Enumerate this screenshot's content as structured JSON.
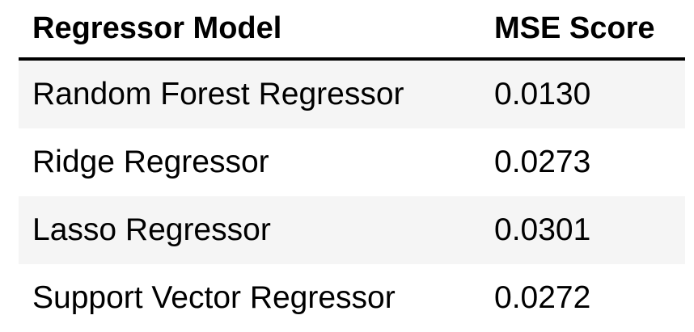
{
  "table": {
    "headers": {
      "model": "Regressor Model",
      "score": "MSE Score"
    },
    "rows": [
      {
        "model": "Random Forest Regressor",
        "score": "0.0130"
      },
      {
        "model": "Ridge Regressor",
        "score": "0.0273"
      },
      {
        "model": "Lasso Regressor",
        "score": "0.0301"
      },
      {
        "model": "Support Vector Regressor",
        "score": "0.0272"
      }
    ]
  },
  "colors": {
    "stripe": "#f5f5f5",
    "text": "#000000",
    "rule": "#000000"
  }
}
